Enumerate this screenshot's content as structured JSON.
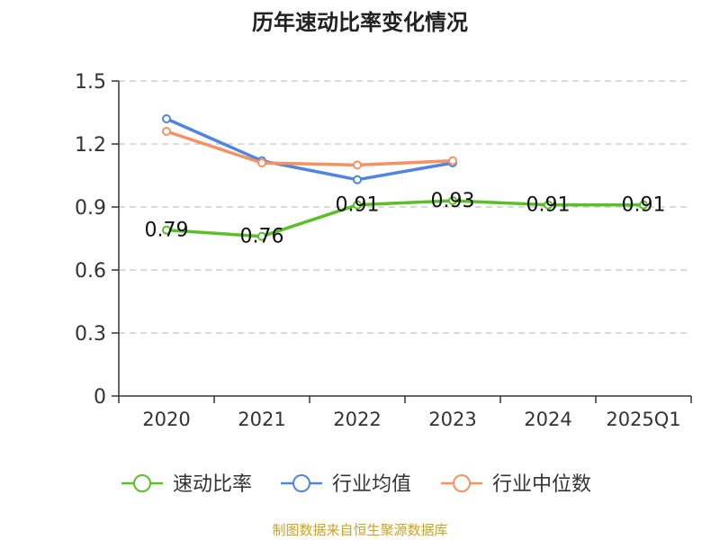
{
  "chart_data": {
    "type": "line",
    "title": "历年速动比率变化情况",
    "categories": [
      "2020",
      "2021",
      "2022",
      "2023",
      "2024",
      "2025Q1"
    ],
    "ylim": [
      0,
      1.5
    ],
    "yticks": [
      "0",
      "0.3",
      "0.6",
      "0.9",
      "1.2",
      "1.5"
    ],
    "grid": true,
    "legend_position": "bottom",
    "series": [
      {
        "name": "速动比率",
        "color": "#5cbf2a",
        "show_labels": true,
        "values": [
          0.79,
          0.76,
          0.91,
          0.93,
          0.91,
          0.91
        ],
        "labels": [
          "0.79",
          "0.76",
          "0.91",
          "0.93",
          "0.91",
          "0.91"
        ]
      },
      {
        "name": "行业均值",
        "color": "#4f85de",
        "show_labels": false,
        "values": [
          1.32,
          1.12,
          1.03,
          1.11,
          null,
          null
        ]
      },
      {
        "name": "行业中位数",
        "color": "#f59262",
        "show_labels": false,
        "values": [
          1.26,
          1.11,
          1.1,
          1.12,
          null,
          null
        ]
      }
    ]
  },
  "source": "制图数据来自恒生聚源数据库"
}
